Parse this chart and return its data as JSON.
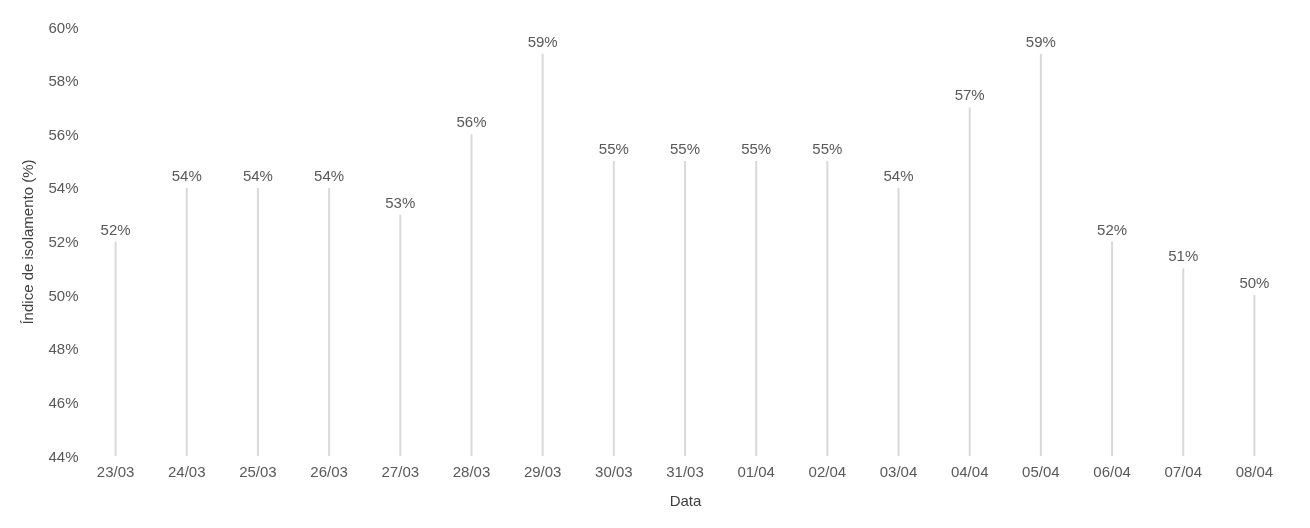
{
  "chart_data": {
    "type": "bar",
    "xlabel": "Data",
    "ylabel": "Índice de isolamento (%)",
    "categories": [
      "23/03",
      "24/03",
      "25/03",
      "26/03",
      "27/03",
      "28/03",
      "29/03",
      "30/03",
      "31/03",
      "01/04",
      "02/04",
      "03/04",
      "04/04",
      "05/04",
      "06/04",
      "07/04",
      "08/04"
    ],
    "values": [
      52,
      54,
      54,
      54,
      53,
      56,
      59,
      55,
      55,
      55,
      55,
      54,
      57,
      59,
      52,
      51,
      50
    ],
    "value_labels": [
      "52%",
      "54%",
      "54%",
      "54%",
      "53%",
      "56%",
      "59%",
      "55%",
      "55%",
      "55%",
      "55%",
      "54%",
      "57%",
      "59%",
      "52%",
      "51%",
      "50%"
    ],
    "color": "#d9d9d9",
    "ylim": [
      44,
      60
    ],
    "yticks": [
      {
        "value": 44,
        "label": "44%"
      },
      {
        "value": 46,
        "label": "46%"
      },
      {
        "value": 48,
        "label": "48%"
      },
      {
        "value": 50,
        "label": "50%"
      },
      {
        "value": 52,
        "label": "52%"
      },
      {
        "value": 54,
        "label": "54%"
      },
      {
        "value": 56,
        "label": "56%"
      },
      {
        "value": 58,
        "label": "58%"
      },
      {
        "value": 60,
        "label": "60%"
      }
    ],
    "grid": false
  }
}
